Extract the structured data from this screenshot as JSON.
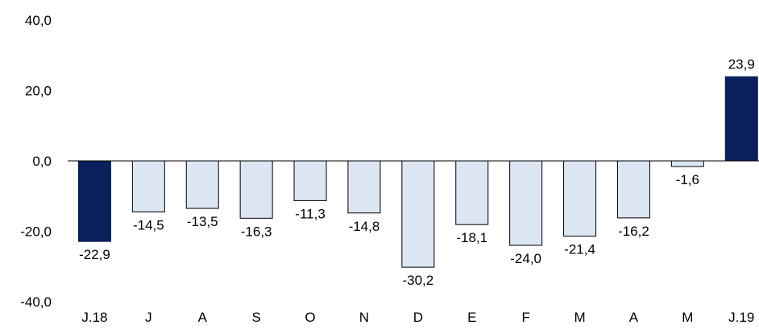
{
  "chart_data": {
    "type": "bar",
    "title": "",
    "xlabel": "",
    "ylabel": "",
    "ylim": [
      -40,
      40
    ],
    "y_ticks": [
      40,
      20,
      0,
      -20,
      -40
    ],
    "y_tick_labels": [
      "40,0",
      "20,0",
      "0,0",
      "-20,0",
      "-40,0"
    ],
    "grid": false,
    "legend": "none",
    "categories": [
      "J.18",
      "J",
      "A",
      "S",
      "O",
      "N",
      "D",
      "E",
      "F",
      "M",
      "A",
      "M",
      "J.19"
    ],
    "values": [
      -22.9,
      -14.5,
      -13.5,
      -16.3,
      -11.3,
      -14.8,
      -30.2,
      -18.1,
      -24.0,
      -21.4,
      -16.2,
      -1.6,
      23.9
    ],
    "value_labels": [
      "-22,9",
      "-14,5",
      "-13,5",
      "-16,3",
      "-11,3",
      "-14,8",
      "-30,2",
      "-18,1",
      "-24,0",
      "-21,4",
      "-16,2",
      "-1,6",
      "23,9"
    ],
    "highlight_indices": [
      0,
      12
    ],
    "colors": {
      "highlight": "#0a1f5c",
      "normal_fill": "#dce6f2",
      "normal_stroke": "#000000",
      "axis": "#000000"
    }
  }
}
